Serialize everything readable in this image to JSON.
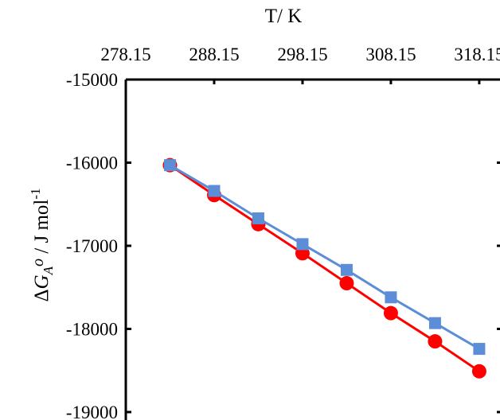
{
  "chart_data": {
    "type": "line",
    "title": "",
    "xlabel": "T/ K",
    "ylabel_parts": {
      "delta": "Δ",
      "G": "G",
      "sub": "A",
      "deg": "o",
      "unit": " / J mol",
      "sup": "-1"
    },
    "x": [
      283.15,
      288.15,
      293.15,
      298.15,
      303.15,
      308.15,
      313.15,
      318.15
    ],
    "x_ticks": [
      278.15,
      288.15,
      298.15,
      308.15,
      318.15
    ],
    "x_tick_labels": [
      "278.15",
      "288.15",
      "298.15",
      "308.15",
      "318.15"
    ],
    "xlim": [
      278.15,
      320.5
    ],
    "y_ticks": [
      -15000,
      -16000,
      -17000,
      -18000,
      -19000
    ],
    "y_tick_labels": [
      "-15000",
      "-16000",
      "-17000",
      "-18000",
      "-19000"
    ],
    "ylim": [
      -19000,
      -15000
    ],
    "x_axis_position": "top",
    "grid": false,
    "series": [
      {
        "color": "#ff0000",
        "marker": "circle",
        "values": [
          -16030,
          -16390,
          -16740,
          -17090,
          -17450,
          -17810,
          -18150,
          -18510
        ]
      },
      {
        "color": "#5b8ed6",
        "marker": "square",
        "values": [
          -16030,
          -16340,
          -16670,
          -16980,
          -17290,
          -17620,
          -17930,
          -18240
        ]
      }
    ]
  }
}
